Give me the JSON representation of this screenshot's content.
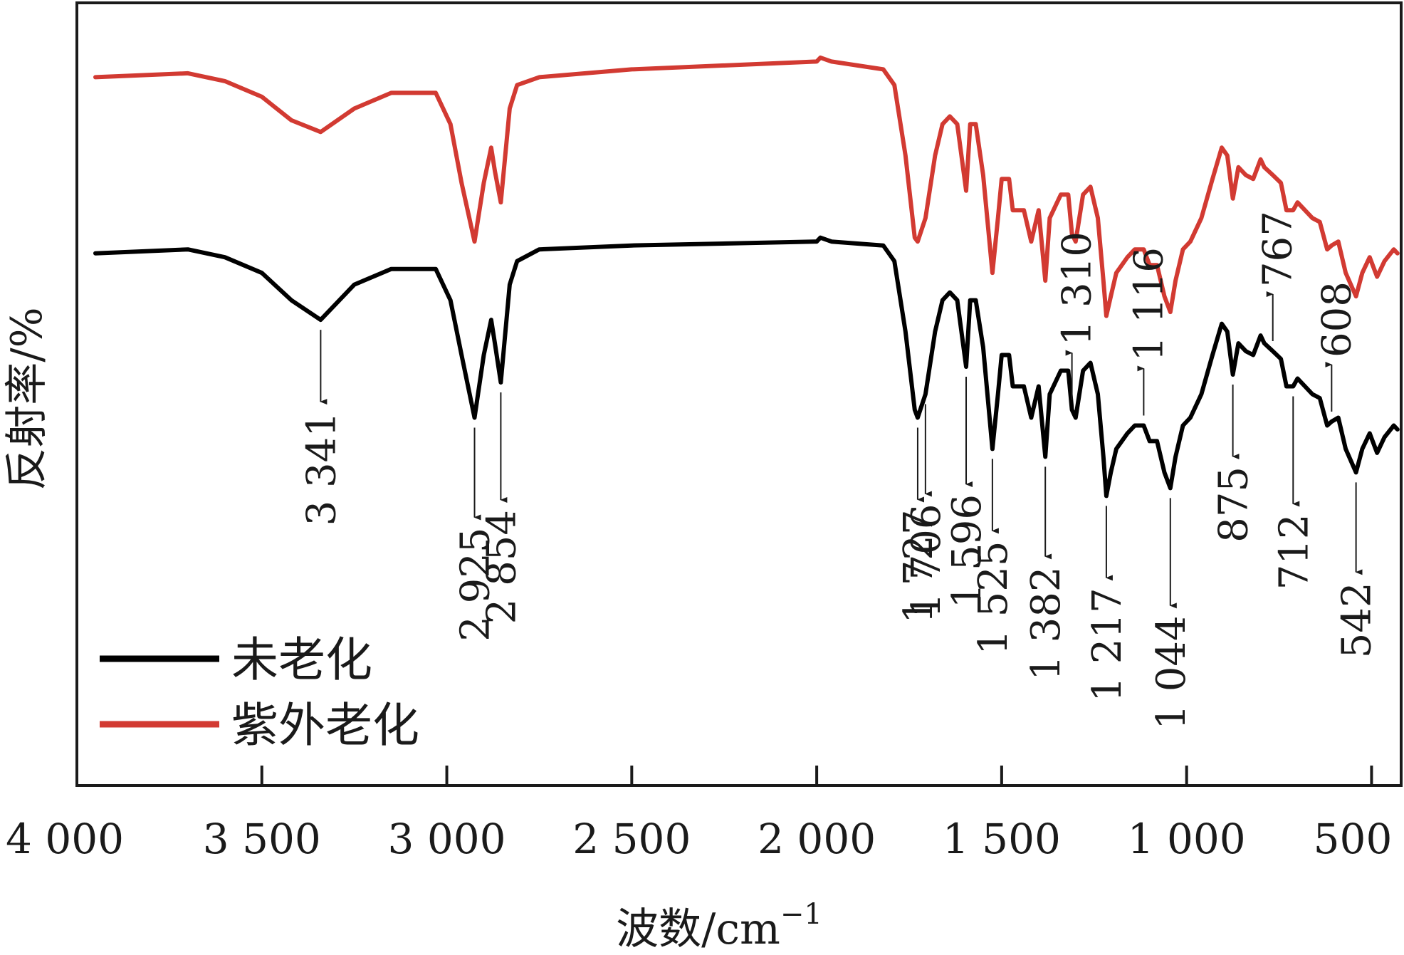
{
  "chart_data": {
    "type": "line",
    "title": "",
    "xlabel": "波数/cm",
    "xlabel_sup": "−1",
    "ylabel": "反射率/%",
    "xlim": [
      4000,
      420
    ],
    "x_reversed": true,
    "yaxis_ticks": false,
    "grid": false,
    "xticks": [
      {
        "value": 4000,
        "label": "4 000"
      },
      {
        "value": 3500,
        "label": "3 500"
      },
      {
        "value": 3000,
        "label": "3 000"
      },
      {
        "value": 2500,
        "label": "2 500"
      },
      {
        "value": 2000,
        "label": "2 000"
      },
      {
        "value": 1500,
        "label": "1 500"
      },
      {
        "value": 1000,
        "label": "1 000"
      },
      {
        "value": 500,
        "label": "500"
      }
    ],
    "legend": {
      "position": "bottom-left"
    },
    "series": [
      {
        "name": "未老化",
        "color": "#000000",
        "points": [
          [
            3950,
            0.68
          ],
          [
            3700,
            0.685
          ],
          [
            3600,
            0.675
          ],
          [
            3500,
            0.655
          ],
          [
            3420,
            0.62
          ],
          [
            3341,
            0.595
          ],
          [
            3250,
            0.64
          ],
          [
            3150,
            0.66
          ],
          [
            3080,
            0.66
          ],
          [
            3030,
            0.66
          ],
          [
            2990,
            0.62
          ],
          [
            2960,
            0.55
          ],
          [
            2925,
            0.47
          ],
          [
            2900,
            0.55
          ],
          [
            2880,
            0.595
          ],
          [
            2870,
            0.565
          ],
          [
            2854,
            0.515
          ],
          [
            2830,
            0.64
          ],
          [
            2810,
            0.67
          ],
          [
            2750,
            0.685
          ],
          [
            2500,
            0.69
          ],
          [
            2000,
            0.695
          ],
          [
            1990,
            0.7
          ],
          [
            1960,
            0.695
          ],
          [
            1820,
            0.69
          ],
          [
            1790,
            0.67
          ],
          [
            1760,
            0.58
          ],
          [
            1735,
            0.48
          ],
          [
            1727,
            0.47
          ],
          [
            1706,
            0.5
          ],
          [
            1680,
            0.58
          ],
          [
            1660,
            0.62
          ],
          [
            1640,
            0.63
          ],
          [
            1620,
            0.62
          ],
          [
            1596,
            0.535
          ],
          [
            1585,
            0.62
          ],
          [
            1570,
            0.62
          ],
          [
            1550,
            0.56
          ],
          [
            1525,
            0.43
          ],
          [
            1510,
            0.5
          ],
          [
            1500,
            0.55
          ],
          [
            1480,
            0.55
          ],
          [
            1470,
            0.51
          ],
          [
            1440,
            0.51
          ],
          [
            1420,
            0.47
          ],
          [
            1400,
            0.51
          ],
          [
            1382,
            0.42
          ],
          [
            1370,
            0.5
          ],
          [
            1350,
            0.52
          ],
          [
            1340,
            0.53
          ],
          [
            1320,
            0.53
          ],
          [
            1310,
            0.48
          ],
          [
            1300,
            0.47
          ],
          [
            1290,
            0.5
          ],
          [
            1280,
            0.53
          ],
          [
            1260,
            0.54
          ],
          [
            1240,
            0.5
          ],
          [
            1225,
            0.42
          ],
          [
            1217,
            0.37
          ],
          [
            1205,
            0.4
          ],
          [
            1190,
            0.43
          ],
          [
            1160,
            0.45
          ],
          [
            1140,
            0.46
          ],
          [
            1116,
            0.46
          ],
          [
            1100,
            0.44
          ],
          [
            1080,
            0.44
          ],
          [
            1060,
            0.4
          ],
          [
            1044,
            0.38
          ],
          [
            1030,
            0.42
          ],
          [
            1010,
            0.46
          ],
          [
            990,
            0.47
          ],
          [
            960,
            0.5
          ],
          [
            930,
            0.55
          ],
          [
            905,
            0.59
          ],
          [
            890,
            0.58
          ],
          [
            875,
            0.525
          ],
          [
            860,
            0.565
          ],
          [
            840,
            0.555
          ],
          [
            820,
            0.55
          ],
          [
            800,
            0.575
          ],
          [
            790,
            0.565
          ],
          [
            767,
            0.555
          ],
          [
            745,
            0.545
          ],
          [
            730,
            0.51
          ],
          [
            712,
            0.51
          ],
          [
            700,
            0.52
          ],
          [
            680,
            0.51
          ],
          [
            660,
            0.5
          ],
          [
            640,
            0.495
          ],
          [
            620,
            0.46
          ],
          [
            608,
            0.465
          ],
          [
            590,
            0.47
          ],
          [
            570,
            0.43
          ],
          [
            542,
            0.4
          ],
          [
            525,
            0.43
          ],
          [
            505,
            0.45
          ],
          [
            485,
            0.425
          ],
          [
            465,
            0.445
          ],
          [
            440,
            0.46
          ],
          [
            430,
            0.455
          ]
        ]
      },
      {
        "name": "紫外老化",
        "color": "#d23a32",
        "points": [
          [
            3950,
            0.905
          ],
          [
            3700,
            0.91
          ],
          [
            3600,
            0.9
          ],
          [
            3500,
            0.88
          ],
          [
            3420,
            0.85
          ],
          [
            3341,
            0.835
          ],
          [
            3250,
            0.865
          ],
          [
            3150,
            0.885
          ],
          [
            3080,
            0.885
          ],
          [
            3030,
            0.885
          ],
          [
            2990,
            0.845
          ],
          [
            2960,
            0.77
          ],
          [
            2925,
            0.695
          ],
          [
            2900,
            0.77
          ],
          [
            2880,
            0.815
          ],
          [
            2870,
            0.785
          ],
          [
            2854,
            0.745
          ],
          [
            2830,
            0.865
          ],
          [
            2810,
            0.895
          ],
          [
            2750,
            0.905
          ],
          [
            2500,
            0.915
          ],
          [
            2000,
            0.925
          ],
          [
            1990,
            0.93
          ],
          [
            1960,
            0.925
          ],
          [
            1820,
            0.915
          ],
          [
            1790,
            0.895
          ],
          [
            1760,
            0.805
          ],
          [
            1735,
            0.7
          ],
          [
            1727,
            0.695
          ],
          [
            1706,
            0.725
          ],
          [
            1680,
            0.805
          ],
          [
            1660,
            0.845
          ],
          [
            1640,
            0.855
          ],
          [
            1620,
            0.845
          ],
          [
            1596,
            0.76
          ],
          [
            1585,
            0.845
          ],
          [
            1570,
            0.845
          ],
          [
            1550,
            0.78
          ],
          [
            1525,
            0.655
          ],
          [
            1510,
            0.725
          ],
          [
            1500,
            0.775
          ],
          [
            1480,
            0.775
          ],
          [
            1470,
            0.735
          ],
          [
            1440,
            0.735
          ],
          [
            1420,
            0.695
          ],
          [
            1400,
            0.735
          ],
          [
            1382,
            0.645
          ],
          [
            1370,
            0.725
          ],
          [
            1350,
            0.745
          ],
          [
            1340,
            0.755
          ],
          [
            1320,
            0.755
          ],
          [
            1310,
            0.705
          ],
          [
            1300,
            0.695
          ],
          [
            1290,
            0.725
          ],
          [
            1280,
            0.755
          ],
          [
            1260,
            0.765
          ],
          [
            1240,
            0.725
          ],
          [
            1225,
            0.645
          ],
          [
            1217,
            0.6
          ],
          [
            1205,
            0.625
          ],
          [
            1190,
            0.655
          ],
          [
            1160,
            0.675
          ],
          [
            1140,
            0.685
          ],
          [
            1116,
            0.685
          ],
          [
            1100,
            0.665
          ],
          [
            1080,
            0.665
          ],
          [
            1060,
            0.625
          ],
          [
            1044,
            0.605
          ],
          [
            1030,
            0.645
          ],
          [
            1010,
            0.685
          ],
          [
            990,
            0.695
          ],
          [
            960,
            0.725
          ],
          [
            930,
            0.775
          ],
          [
            905,
            0.815
          ],
          [
            890,
            0.805
          ],
          [
            875,
            0.75
          ],
          [
            860,
            0.79
          ],
          [
            840,
            0.78
          ],
          [
            820,
            0.775
          ],
          [
            800,
            0.8
          ],
          [
            790,
            0.79
          ],
          [
            767,
            0.78
          ],
          [
            745,
            0.77
          ],
          [
            730,
            0.735
          ],
          [
            712,
            0.735
          ],
          [
            700,
            0.745
          ],
          [
            680,
            0.735
          ],
          [
            660,
            0.725
          ],
          [
            640,
            0.72
          ],
          [
            620,
            0.685
          ],
          [
            608,
            0.69
          ],
          [
            590,
            0.695
          ],
          [
            570,
            0.655
          ],
          [
            542,
            0.625
          ],
          [
            525,
            0.655
          ],
          [
            505,
            0.675
          ],
          [
            485,
            0.65
          ],
          [
            465,
            0.67
          ],
          [
            440,
            0.685
          ],
          [
            430,
            0.68
          ]
        ]
      }
    ],
    "annotations": [
      {
        "label": "3 341",
        "x": 3341,
        "direction": "down"
      },
      {
        "label": "2 925",
        "x": 2925,
        "direction": "down"
      },
      {
        "label": "2 854",
        "x": 2854,
        "direction": "down"
      },
      {
        "label": "1 727",
        "x": 1727,
        "direction": "down"
      },
      {
        "label": "1 706",
        "x": 1706,
        "direction": "down"
      },
      {
        "label": "1 596",
        "x": 1596,
        "direction": "down"
      },
      {
        "label": "1 525",
        "x": 1525,
        "direction": "down"
      },
      {
        "label": "1 382",
        "x": 1382,
        "direction": "down"
      },
      {
        "label": "1 310",
        "x": 1310,
        "direction": "up"
      },
      {
        "label": "1 217",
        "x": 1217,
        "direction": "down"
      },
      {
        "label": "1 116",
        "x": 1116,
        "direction": "up"
      },
      {
        "label": "1 044",
        "x": 1044,
        "direction": "down"
      },
      {
        "label": "875",
        "x": 875,
        "direction": "down"
      },
      {
        "label": "767",
        "x": 767,
        "direction": "up"
      },
      {
        "label": "712",
        "x": 712,
        "direction": "down"
      },
      {
        "label": "608",
        "x": 608,
        "direction": "up"
      },
      {
        "label": "542",
        "x": 542,
        "direction": "down"
      }
    ]
  }
}
